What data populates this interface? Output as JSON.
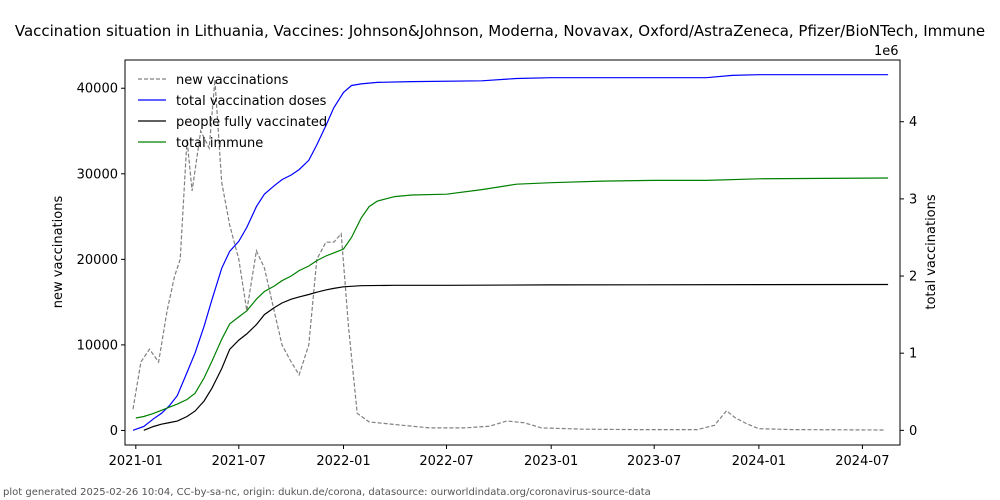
{
  "chart_data": {
    "type": "line",
    "title": "Vaccination situation in Lithuania, Vaccines: Johnson&Johnson, Moderna, Novavax, Oxford/AstraZeneca, Pfizer/BioNTech, Immune",
    "xlabel": "",
    "ylabel_left": "new vaccinations",
    "ylabel_right": "total vaccinations",
    "right_axis_offset_label": "1e6",
    "x_ticks": [
      "2021-01",
      "2021-07",
      "2022-01",
      "2022-07",
      "2023-01",
      "2023-07",
      "2024-01",
      "2024-07"
    ],
    "y_left_ticks": [
      "0",
      "10000",
      "20000",
      "30000",
      "40000"
    ],
    "y_right_ticks": [
      "0",
      "1",
      "2",
      "3",
      "4"
    ],
    "x_range": [
      "2020-12-13",
      "2024-09-05"
    ],
    "y_left_range": [
      -1700,
      43300
    ],
    "y_right_range": [
      -0.19,
      4.8
    ],
    "grid": false,
    "legend_position": "top-left",
    "series": [
      {
        "name": "new vaccinations",
        "axis": "left",
        "color": "#808080",
        "style": "dashed",
        "points": [
          [
            "2020-12-27",
            2500
          ],
          [
            "2021-01-10",
            8000
          ],
          [
            "2021-01-25",
            9500
          ],
          [
            "2021-02-10",
            8000
          ],
          [
            "2021-02-25",
            14000
          ],
          [
            "2021-03-10",
            18000
          ],
          [
            "2021-03-20",
            20000
          ],
          [
            "2021-04-01",
            34000
          ],
          [
            "2021-04-10",
            28000
          ],
          [
            "2021-04-25",
            35000
          ],
          [
            "2021-05-10",
            33000
          ],
          [
            "2021-05-20",
            41000
          ],
          [
            "2021-06-01",
            29000
          ],
          [
            "2021-06-15",
            24000
          ],
          [
            "2021-07-01",
            20000
          ],
          [
            "2021-07-15",
            14000
          ],
          [
            "2021-08-01",
            21000
          ],
          [
            "2021-08-15",
            19000
          ],
          [
            "2021-09-01",
            14000
          ],
          [
            "2021-09-15",
            10000
          ],
          [
            "2021-10-01",
            8000
          ],
          [
            "2021-10-15",
            6500
          ],
          [
            "2021-11-01",
            10000
          ],
          [
            "2021-11-15",
            20000
          ],
          [
            "2021-12-01",
            22000
          ],
          [
            "2021-12-15",
            22000
          ],
          [
            "2021-12-28",
            23000
          ],
          [
            "2022-01-10",
            12000
          ],
          [
            "2022-01-25",
            2000
          ],
          [
            "2022-02-15",
            1000
          ],
          [
            "2022-04-01",
            700
          ],
          [
            "2022-06-01",
            300
          ],
          [
            "2022-08-01",
            300
          ],
          [
            "2022-09-15",
            500
          ],
          [
            "2022-10-15",
            1100
          ],
          [
            "2022-11-15",
            900
          ],
          [
            "2022-12-15",
            300
          ],
          [
            "2023-03-01",
            150
          ],
          [
            "2023-06-01",
            100
          ],
          [
            "2023-09-15",
            100
          ],
          [
            "2023-10-15",
            600
          ],
          [
            "2023-11-05",
            2300
          ],
          [
            "2023-11-20",
            1500
          ],
          [
            "2023-12-10",
            800
          ],
          [
            "2024-01-01",
            200
          ],
          [
            "2024-03-01",
            100
          ],
          [
            "2024-08-10",
            50
          ]
        ]
      },
      {
        "name": "total vaccination doses",
        "axis": "right",
        "color": "#0000ff",
        "style": "solid",
        "points": [
          [
            "2020-12-27",
            0.0
          ],
          [
            "2021-01-15",
            0.05
          ],
          [
            "2021-02-01",
            0.15
          ],
          [
            "2021-02-15",
            0.22
          ],
          [
            "2021-03-01",
            0.32
          ],
          [
            "2021-03-15",
            0.45
          ],
          [
            "2021-04-01",
            0.75
          ],
          [
            "2021-04-15",
            1.0
          ],
          [
            "2021-05-01",
            1.35
          ],
          [
            "2021-05-15",
            1.7
          ],
          [
            "2021-06-01",
            2.1
          ],
          [
            "2021-06-15",
            2.32
          ],
          [
            "2021-07-01",
            2.45
          ],
          [
            "2021-07-15",
            2.63
          ],
          [
            "2021-08-01",
            2.9
          ],
          [
            "2021-08-15",
            3.06
          ],
          [
            "2021-09-01",
            3.17
          ],
          [
            "2021-09-15",
            3.25
          ],
          [
            "2021-10-01",
            3.31
          ],
          [
            "2021-10-15",
            3.38
          ],
          [
            "2021-11-01",
            3.5
          ],
          [
            "2021-11-15",
            3.7
          ],
          [
            "2021-12-01",
            3.95
          ],
          [
            "2021-12-15",
            4.18
          ],
          [
            "2022-01-01",
            4.38
          ],
          [
            "2022-01-15",
            4.47
          ],
          [
            "2022-02-01",
            4.49
          ],
          [
            "2022-03-01",
            4.51
          ],
          [
            "2022-05-01",
            4.52
          ],
          [
            "2022-09-01",
            4.53
          ],
          [
            "2022-11-01",
            4.56
          ],
          [
            "2023-01-01",
            4.57
          ],
          [
            "2023-04-01",
            4.57
          ],
          [
            "2023-10-01",
            4.57
          ],
          [
            "2023-11-15",
            4.6
          ],
          [
            "2024-01-01",
            4.61
          ],
          [
            "2024-08-15",
            4.61
          ]
        ]
      },
      {
        "name": "people fully vaccinated",
        "axis": "right",
        "color": "#000000",
        "style": "solid",
        "points": [
          [
            "2021-01-15",
            0.0
          ],
          [
            "2021-02-01",
            0.05
          ],
          [
            "2021-02-15",
            0.08
          ],
          [
            "2021-03-01",
            0.1
          ],
          [
            "2021-03-15",
            0.12
          ],
          [
            "2021-04-01",
            0.18
          ],
          [
            "2021-04-15",
            0.25
          ],
          [
            "2021-05-01",
            0.38
          ],
          [
            "2021-05-15",
            0.55
          ],
          [
            "2021-06-01",
            0.8
          ],
          [
            "2021-06-15",
            1.05
          ],
          [
            "2021-07-01",
            1.17
          ],
          [
            "2021-07-15",
            1.25
          ],
          [
            "2021-08-01",
            1.37
          ],
          [
            "2021-08-15",
            1.5
          ],
          [
            "2021-09-01",
            1.59
          ],
          [
            "2021-09-15",
            1.65
          ],
          [
            "2021-10-01",
            1.7
          ],
          [
            "2021-10-15",
            1.73
          ],
          [
            "2021-11-01",
            1.76
          ],
          [
            "2021-11-15",
            1.79
          ],
          [
            "2021-12-01",
            1.82
          ],
          [
            "2021-12-15",
            1.84
          ],
          [
            "2022-01-01",
            1.86
          ],
          [
            "2022-02-01",
            1.875
          ],
          [
            "2022-04-01",
            1.88
          ],
          [
            "2022-07-01",
            1.88
          ],
          [
            "2023-01-01",
            1.885
          ],
          [
            "2024-08-15",
            1.89
          ]
        ]
      },
      {
        "name": "total immune",
        "axis": "right",
        "color": "#008000",
        "style": "solid",
        "points": [
          [
            "2021-01-01",
            0.16
          ],
          [
            "2021-01-15",
            0.18
          ],
          [
            "2021-02-01",
            0.22
          ],
          [
            "2021-02-15",
            0.26
          ],
          [
            "2021-03-01",
            0.3
          ],
          [
            "2021-03-15",
            0.34
          ],
          [
            "2021-04-01",
            0.4
          ],
          [
            "2021-04-15",
            0.48
          ],
          [
            "2021-05-01",
            0.68
          ],
          [
            "2021-05-15",
            0.9
          ],
          [
            "2021-06-01",
            1.18
          ],
          [
            "2021-06-15",
            1.38
          ],
          [
            "2021-07-01",
            1.47
          ],
          [
            "2021-07-15",
            1.55
          ],
          [
            "2021-08-01",
            1.7
          ],
          [
            "2021-08-15",
            1.8
          ],
          [
            "2021-09-01",
            1.87
          ],
          [
            "2021-09-15",
            1.94
          ],
          [
            "2021-10-01",
            2.0
          ],
          [
            "2021-10-15",
            2.07
          ],
          [
            "2021-11-01",
            2.13
          ],
          [
            "2021-11-15",
            2.2
          ],
          [
            "2021-12-01",
            2.26
          ],
          [
            "2021-12-15",
            2.3
          ],
          [
            "2022-01-01",
            2.35
          ],
          [
            "2022-01-15",
            2.5
          ],
          [
            "2022-02-01",
            2.75
          ],
          [
            "2022-02-15",
            2.9
          ],
          [
            "2022-03-01",
            2.97
          ],
          [
            "2022-04-01",
            3.03
          ],
          [
            "2022-05-01",
            3.05
          ],
          [
            "2022-07-01",
            3.06
          ],
          [
            "2022-09-01",
            3.12
          ],
          [
            "2022-11-01",
            3.19
          ],
          [
            "2023-01-01",
            3.21
          ],
          [
            "2023-04-01",
            3.23
          ],
          [
            "2023-07-01",
            3.24
          ],
          [
            "2023-10-01",
            3.24
          ],
          [
            "2024-01-01",
            3.26
          ],
          [
            "2024-08-15",
            3.27
          ]
        ]
      }
    ]
  },
  "footer": "plot generated 2025-02-26 10:04, CC-by-sa-nc, origin: dukun.de/corona, datasource: ourworldindata.org/coronavirus-source-data"
}
